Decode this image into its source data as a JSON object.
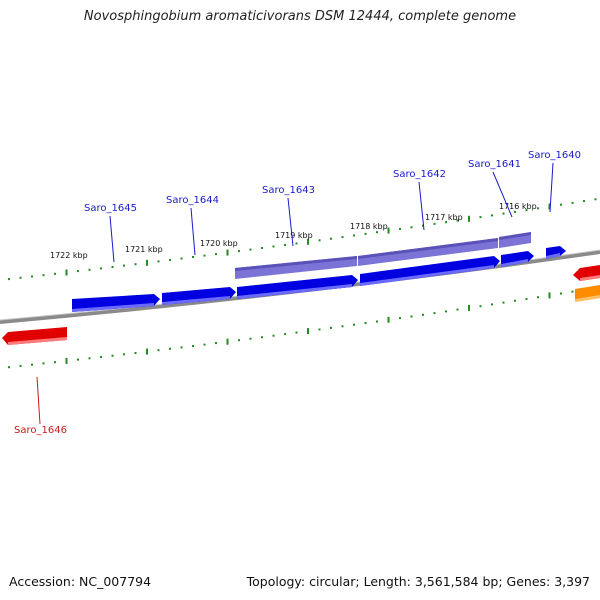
{
  "title": "Novosphingobium aromaticivorans DSM 12444, complete genome",
  "footer": {
    "accession": "Accession: NC_007794",
    "summary": "Topology: circular; Length: 3,561,584 bp; Genes: 3,397"
  },
  "colors": {
    "backbone": "#8a8a8a",
    "forward_gene": "#0000e0",
    "forward_gene_shade": "#7b74d6",
    "reverse_gene": "#e00000",
    "orange_gene": "#ff8c00",
    "tick": "#228b22",
    "label_blue": "#1a1acc",
    "label_red": "#cc1a1a"
  },
  "ticks": [
    {
      "label": "1722 kbp"
    },
    {
      "label": "1721 kbp"
    },
    {
      "label": "1720 kbp"
    },
    {
      "label": "1719 kbp"
    },
    {
      "label": "1718 kbp"
    },
    {
      "label": "1717 kbp"
    },
    {
      "label": "1716 kbp"
    }
  ],
  "genes": [
    {
      "name": "Saro_1645",
      "strand": "forward"
    },
    {
      "name": "Saro_1644",
      "strand": "forward"
    },
    {
      "name": "Saro_1643",
      "strand": "forward"
    },
    {
      "name": "Saro_1642",
      "strand": "forward"
    },
    {
      "name": "Saro_1641",
      "strand": "forward"
    },
    {
      "name": "Saro_1640",
      "strand": "forward"
    },
    {
      "name": "Saro_1646",
      "strand": "reverse"
    }
  ]
}
